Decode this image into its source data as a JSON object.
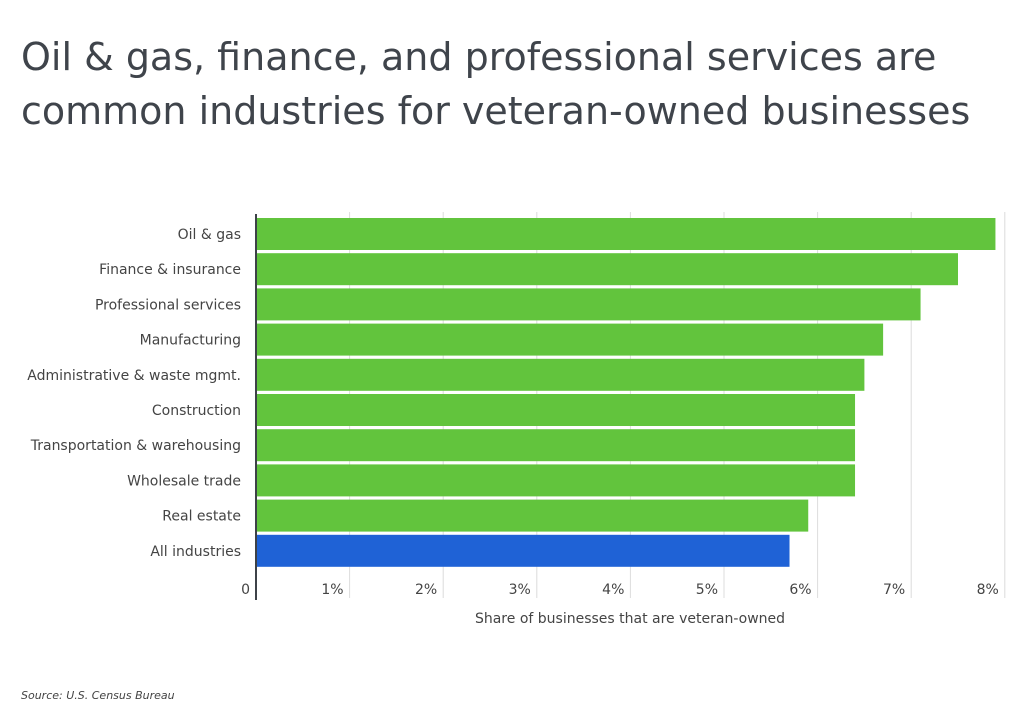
{
  "title": "Oil & gas, finance, and professional services are common industries for veteran-owned businesses",
  "source": "Source: U.S. Census Bureau",
  "colors": {
    "highlight": "#62c43d",
    "baseline": "#1f62d6",
    "grid": "#dcdcdc",
    "axis": "#3d4248"
  },
  "chart_data": {
    "type": "bar",
    "orientation": "horizontal",
    "title": "Oil & gas, finance, and professional services are common industries for veteran-owned businesses",
    "xlabel": "Share of businesses that are veteran-owned",
    "ylabel": "",
    "xlim": [
      0,
      8
    ],
    "grid": true,
    "x_ticks": [
      "0",
      "1%",
      "2%",
      "3%",
      "4%",
      "5%",
      "6%",
      "7%",
      "8%"
    ],
    "categories": [
      "Oil & gas",
      "Finance & insurance",
      "Professional services",
      "Manufacturing",
      "Administrative & waste mgmt.",
      "Construction",
      "Transportation & warehousing",
      "Wholesale trade",
      "Real estate",
      "All industries"
    ],
    "values": [
      7.9,
      7.5,
      7.1,
      6.7,
      6.5,
      6.4,
      6.4,
      6.4,
      5.9,
      5.7
    ],
    "unit": "%"
  }
}
